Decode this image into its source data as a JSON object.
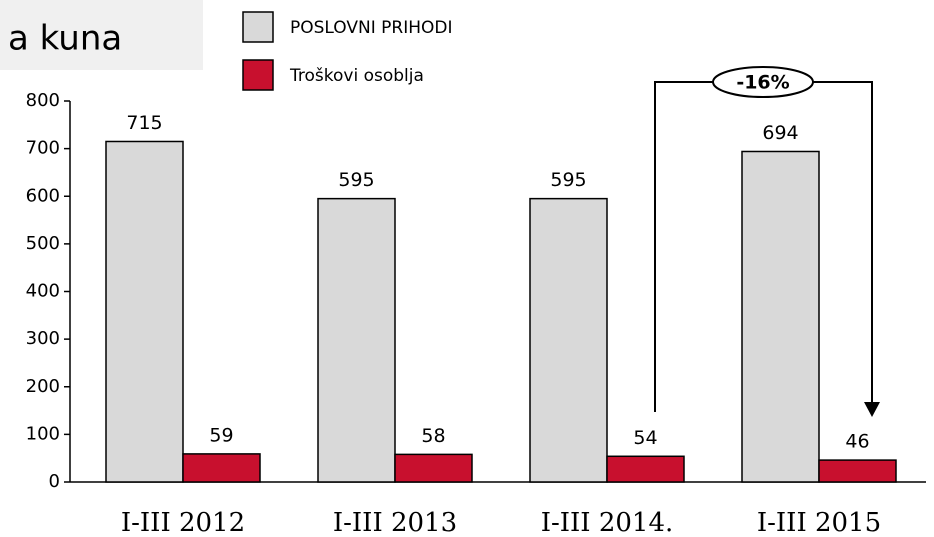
{
  "chart_data": {
    "type": "bar",
    "title": "a kuna",
    "categories": [
      "I-III 2012",
      "I-III 2013",
      "I-III 2014.",
      "I-III 2015"
    ],
    "series": [
      {
        "name": "POSLOVNI PRIHODI",
        "color": "#d9d9d9",
        "values": [
          715,
          595,
          595,
          694
        ]
      },
      {
        "name": "Troškovi osoblja",
        "color": "#c8102e",
        "values": [
          59,
          58,
          54,
          46
        ]
      }
    ],
    "ylim": [
      0,
      800
    ],
    "yticks": [
      0,
      100,
      200,
      300,
      400,
      500,
      600,
      700,
      800
    ],
    "annotation": "-16%"
  }
}
